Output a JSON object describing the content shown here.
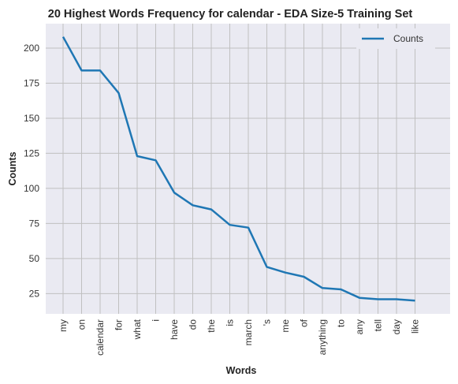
{
  "chart_data": {
    "type": "line",
    "title": "20 Highest Words Frequency for calendar - EDA Size-5 Training Set",
    "xlabel": "Words",
    "ylabel": "Counts",
    "categories": [
      "my",
      "on",
      "calendar",
      "for",
      "what",
      "i",
      "have",
      "do",
      "the",
      "is",
      "march",
      "'s",
      "me",
      "of",
      "anything",
      "to",
      "any",
      "tell",
      "day",
      "like"
    ],
    "series": [
      {
        "name": "Counts",
        "values": [
          208,
          184,
          184,
          168,
          123,
          120,
          97,
          88,
          85,
          74,
          72,
          44,
          40,
          37,
          29,
          28,
          22,
          21,
          21,
          20
        ]
      }
    ],
    "ylim": [
      10.6,
      217.4
    ],
    "yticks": [
      25,
      50,
      75,
      100,
      125,
      150,
      175,
      200
    ],
    "grid": true,
    "legend": "top-right",
    "colors": {
      "line": "#1f77b4",
      "background": "#eaeaf2",
      "grid": "#c0c0c0"
    }
  }
}
